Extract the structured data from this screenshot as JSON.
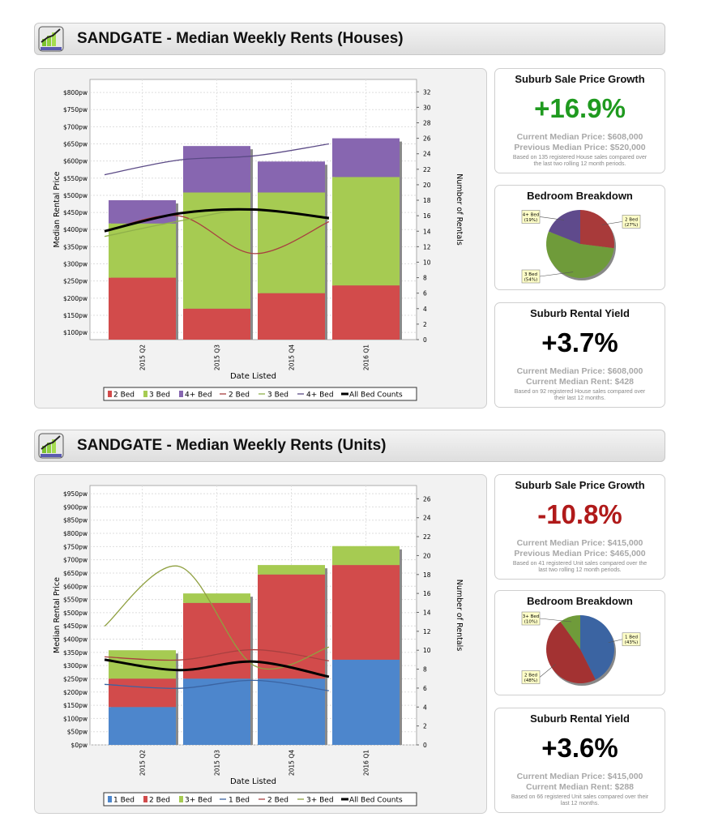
{
  "colors": {
    "green_growth": "#1f9a1f",
    "red_growth": "#b01a1a",
    "bar_red": "#d24b4b",
    "bar_green": "#a6cb52",
    "bar_purple": "#8766b0",
    "bar_blue": "#4d86cc"
  },
  "sections": [
    {
      "title": "SANDGATE - Median Weekly Rents (Houses)",
      "growth": {
        "title": "Suburb Sale Price Growth",
        "value": "+16.9%",
        "color": "#1f9a1f",
        "line1": "Current Median Price: $608,000",
        "line2": "Previous Median Price: $520,000",
        "note": "Based on 135 registered House sales compared over the last two rolling 12 month periods."
      },
      "breakdown": {
        "title": "Bedroom Breakdown",
        "slices": [
          {
            "label": "2 Bed",
            "pct": "(27%)",
            "value": 27,
            "color": "#a83a3a"
          },
          {
            "label": "3 Bed",
            "pct": "(54%)",
            "value": 54,
            "color": "#6f9b3a"
          },
          {
            "label": "4+ Bed",
            "pct": "(19%)",
            "value": 19,
            "color": "#5f4a8c"
          }
        ]
      },
      "yield": {
        "title": "Suburb Rental Yield",
        "value": "+3.7%",
        "line1": "Current Median Price: $608,000",
        "line2": "Current Median Rent: $428",
        "note": "Based on 92 registered House sales compared over their last 12 months."
      }
    },
    {
      "title": "SANDGATE - Median Weekly Rents (Units)",
      "growth": {
        "title": "Suburb Sale Price Growth",
        "value": "-10.8%",
        "color": "#b01a1a",
        "line1": "Current Median Price: $415,000",
        "line2": "Previous Median Price: $465,000",
        "note": "Based on 41 registered Unit sales compared over the last two rolling 12 month periods."
      },
      "breakdown": {
        "title": "Bedroom Breakdown",
        "slices": [
          {
            "label": "1 Bed",
            "pct": "(43%)",
            "value": 43,
            "color": "#3b64a2"
          },
          {
            "label": "2 Bed",
            "pct": "(48%)",
            "value": 48,
            "color": "#a33232"
          },
          {
            "label": "3+ Bed",
            "pct": "(10%)",
            "value": 10,
            "color": "#6f9b3a"
          }
        ]
      },
      "yield": {
        "title": "Suburb Rental Yield",
        "value": "+3.6%",
        "line1": "Current Median Price: $415,000",
        "line2": "Current Median Rent: $288",
        "note": "Based on 66 registered Unit sales compared over their last 12 months."
      }
    }
  ],
  "chart_data": [
    {
      "type": "bar",
      "xlabel": "Date Listed",
      "ylabel": "Median Rental Price",
      "y2label": "Number of Rentals",
      "categories": [
        "2015 Q2",
        "2015 Q3",
        "2015 Q4",
        "2016 Q1"
      ],
      "left_ticks": [
        "$100pw",
        "$150pw",
        "$200pw",
        "$250pw",
        "$300pw",
        "$350pw",
        "$400pw",
        "$450pw",
        "$500pw",
        "$550pw",
        "$600pw",
        "$650pw",
        "$700pw",
        "$750pw",
        "$800pw"
      ],
      "left_tick_values": [
        100,
        150,
        200,
        250,
        300,
        350,
        400,
        450,
        500,
        550,
        600,
        650,
        700,
        750,
        800
      ],
      "right_ticks": [
        0,
        2,
        4,
        6,
        8,
        10,
        12,
        14,
        16,
        18,
        20,
        22,
        24,
        26,
        28,
        30,
        32
      ],
      "ylim": [
        79,
        838
      ],
      "y2lim": [
        0,
        33.6
      ],
      "grid": true,
      "legend": "bottom",
      "bars": [
        {
          "name": "2 Bed",
          "color": "#d24b4b",
          "values": [
            8,
            4,
            6,
            7
          ]
        },
        {
          "name": "3 Bed",
          "color": "#a6cb52",
          "values": [
            7,
            15,
            13,
            14
          ]
        },
        {
          "name": "4+ Bed",
          "color": "#8766b0",
          "values": [
            3,
            6,
            4,
            5
          ]
        }
      ],
      "lines": [
        {
          "name": "2 Bed",
          "color": "#a84040",
          "values": [
            395,
            440,
            330,
            423
          ]
        },
        {
          "name": "3 Bed",
          "color": "#8fb04a",
          "values": [
            380,
            425,
            460,
            430
          ]
        },
        {
          "name": "4+ Bed",
          "color": "#5b4a86",
          "values": [
            560,
            603,
            615,
            650
          ]
        }
      ],
      "count_line": {
        "name": "All Bed Counts",
        "color": "#000000",
        "values": [
          14,
          16.3,
          16.8,
          15.7
        ]
      }
    },
    {
      "type": "bar",
      "xlabel": "Date Listed",
      "ylabel": "Median Rental Price",
      "y2label": "Number of Rentals",
      "categories": [
        "2015 Q2",
        "2015 Q3",
        "2015 Q4",
        "2016 Q1"
      ],
      "left_ticks": [
        "$0pw",
        "$50pw",
        "$100pw",
        "$150pw",
        "$200pw",
        "$250pw",
        "$300pw",
        "$350pw",
        "$400pw",
        "$450pw",
        "$500pw",
        "$550pw",
        "$600pw",
        "$650pw",
        "$700pw",
        "$750pw",
        "$800pw",
        "$850pw",
        "$900pw",
        "$950pw"
      ],
      "left_tick_values": [
        0,
        50,
        100,
        150,
        200,
        250,
        300,
        350,
        400,
        450,
        500,
        550,
        600,
        650,
        700,
        750,
        800,
        850,
        900,
        950
      ],
      "right_ticks": [
        0,
        2,
        4,
        6,
        8,
        10,
        12,
        14,
        16,
        18,
        20,
        22,
        24,
        26
      ],
      "ylim": [
        0,
        981
      ],
      "y2lim": [
        0,
        27.4
      ],
      "grid": true,
      "legend": "bottom",
      "bars": [
        {
          "name": "1 Bed",
          "color": "#4d86cc",
          "values": [
            4,
            7,
            7,
            9
          ]
        },
        {
          "name": "2 Bed",
          "color": "#d24b4b",
          "values": [
            3,
            8,
            11,
            10
          ]
        },
        {
          "name": "3+ Bed",
          "color": "#a6cb52",
          "values": [
            3,
            1,
            1,
            2
          ]
        }
      ],
      "lines": [
        {
          "name": "1 Bed",
          "color": "#3b64a2",
          "values": [
            229,
            214,
            244,
            205
          ]
        },
        {
          "name": "2 Bed",
          "color": "#a84040",
          "values": [
            333,
            321,
            360,
            318
          ]
        },
        {
          "name": "3+ Bed",
          "color": "#8fa040",
          "values": [
            449,
            675,
            300,
            370
          ]
        }
      ],
      "count_line": {
        "name": "All Bed Counts",
        "color": "#000000",
        "values": [
          9.0,
          7.9,
          8.8,
          7.2
        ]
      }
    }
  ]
}
